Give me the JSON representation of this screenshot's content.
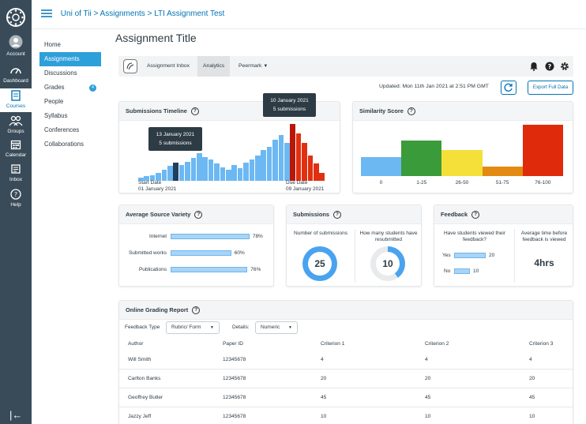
{
  "global_nav": {
    "items": [
      {
        "label": "Account",
        "icon": "account-icon"
      },
      {
        "label": "Dashboard",
        "icon": "dashboard-icon"
      },
      {
        "label": "Courses",
        "icon": "courses-icon"
      },
      {
        "label": "Groups",
        "icon": "groups-icon"
      },
      {
        "label": "Calendar",
        "icon": "calendar-icon"
      },
      {
        "label": "Inbox",
        "icon": "inbox-icon"
      },
      {
        "label": "Help",
        "icon": "help-icon"
      }
    ],
    "active": "Courses",
    "collapse_glyph": "|←"
  },
  "breadcrumb": {
    "course": "Uni of Tii",
    "section": "Assignments",
    "page": "LTI Assignment Test",
    "sep": ">"
  },
  "course_nav": {
    "items": [
      "Home",
      "Assignments",
      "Discussions",
      "Grades",
      "People",
      "Syllabus",
      "Conferences",
      "Collaborations"
    ],
    "active": "Assignments",
    "grades_badge": "4"
  },
  "page_title": "Assignment Title",
  "toolbar": {
    "tab_inbox": "Assignment Inbox",
    "tab_analytics": "Analytics",
    "tab_peermark": "Peermark"
  },
  "updated_text": "Updated: Mon 11th Jan 2021 at 2:51 PM GMT",
  "export_label": "Export Full Data",
  "timeline": {
    "title": "Submissions Timeline",
    "start_label": "Start Date",
    "start_date": "01 January 2021",
    "due_label": "Due Date",
    "due_date": "09 January 2021",
    "tooltip1_date": "13 January  2021",
    "tooltip1_count": "5 submissions",
    "tooltip2_date": "10 January 2021",
    "tooltip2_count": "5 submissions",
    "bars_before_due": [
      3,
      4,
      5,
      7,
      10,
      13,
      16,
      14,
      17,
      20,
      24,
      21,
      19,
      15,
      12,
      10,
      14,
      11,
      16,
      19,
      22,
      27,
      30,
      36,
      40,
      33
    ],
    "bars_after_due": [
      50,
      42,
      33,
      22,
      15,
      7
    ],
    "colors": {
      "before": "#6cb8f3",
      "selected": "#1f3f5c",
      "after": "#e03010",
      "due": "#b8170a"
    }
  },
  "similarity": {
    "title": "Similarity Score",
    "chart_data": {
      "type": "bar",
      "categories": [
        "0",
        "1-25",
        "26-50",
        "51-75",
        "76-100"
      ],
      "values": [
        0.36,
        0.66,
        0.48,
        0.17,
        0.96
      ],
      "colors": [
        "#6cb8f3",
        "#3a9b3a",
        "#f5e03a",
        "#e38a12",
        "#e02a0c"
      ]
    }
  },
  "source_variety": {
    "title": "Average Source Variety",
    "rows": [
      {
        "label": "Internet",
        "value": "78%",
        "pct": 78
      },
      {
        "label": "Submitted works",
        "value": "60%",
        "pct": 60
      },
      {
        "label": "Publications",
        "value": "76%",
        "pct": 76
      }
    ]
  },
  "submissions": {
    "title": "Submissions",
    "left_label": "Number of submissions",
    "left_value": "25",
    "right_label": "How many students have resubmitted",
    "right_value": "10",
    "right_fraction": 0.4
  },
  "feedback": {
    "title": "Feedback",
    "left_label": "Have students viewed their feedback?",
    "yes_label": "Yes",
    "yes_value": "20",
    "no_label": "No",
    "no_value": "10",
    "right_label": "Average time before feedback is viewed",
    "right_value": "4hrs"
  },
  "grading": {
    "title": "Online Grading Report",
    "feedback_type_label": "Feedback Type",
    "feedback_type_value": "Rubric/ Form",
    "details_label": "Details:",
    "details_value": "Numeric",
    "columns": [
      "Author",
      "Paper ID",
      "Criterion 1",
      "Criterion 2",
      "Criterion 3"
    ],
    "rows": [
      [
        "Will Smith",
        "12345678",
        "4",
        "4",
        "4"
      ],
      [
        "Carlton Banks",
        "12345678",
        "20",
        "20",
        "20"
      ],
      [
        "Geoffrey Butler",
        "12345678",
        "45",
        "45",
        "45"
      ],
      [
        "Jazzy Jeff",
        "12345678",
        "10",
        "10",
        "10"
      ]
    ]
  }
}
